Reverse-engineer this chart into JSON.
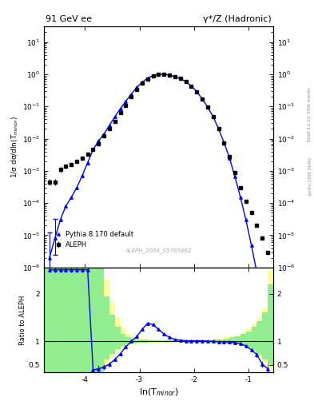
{
  "title_left": "91 GeV ee",
  "title_right": "γ*/Z (Hadronic)",
  "ylabel_main": "1/σ dσ/dln(T$_{minor}$)",
  "ylabel_ratio": "Ratio to ALEPH",
  "xlabel": "ln(T$_{minor}$)",
  "watermark": "ALEPH_2004_S5765862",
  "right_label": "Rivet 3.1.10, 500k events",
  "right_label2": "[arXiv:1306.3436]",
  "xlim": [
    -4.75,
    -0.55
  ],
  "ylim_main": [
    1e-06,
    30
  ],
  "ylim_ratio": [
    0.35,
    2.55
  ],
  "ratio_yticks": [
    0.5,
    1.0,
    2.0
  ],
  "aleph_x": [
    -4.65,
    -4.55,
    -4.45,
    -4.35,
    -4.25,
    -4.15,
    -4.05,
    -3.95,
    -3.85,
    -3.75,
    -3.65,
    -3.55,
    -3.45,
    -3.35,
    -3.25,
    -3.15,
    -3.05,
    -2.95,
    -2.85,
    -2.75,
    -2.65,
    -2.55,
    -2.45,
    -2.35,
    -2.25,
    -2.15,
    -2.05,
    -1.95,
    -1.85,
    -1.75,
    -1.65,
    -1.55,
    -1.45,
    -1.35,
    -1.25,
    -1.15,
    -1.05,
    -0.95,
    -0.85,
    -0.75,
    -0.65
  ],
  "aleph_y": [
    0.00045,
    0.00045,
    0.0011,
    0.0014,
    0.0016,
    0.002,
    0.0025,
    0.0032,
    0.0045,
    0.007,
    0.012,
    0.02,
    0.035,
    0.065,
    0.11,
    0.2,
    0.33,
    0.52,
    0.72,
    0.88,
    0.98,
    1.0,
    0.95,
    0.85,
    0.73,
    0.58,
    0.43,
    0.29,
    0.17,
    0.095,
    0.048,
    0.02,
    0.0075,
    0.0028,
    0.0009,
    0.0003,
    0.00011,
    5e-05,
    2e-05,
    8e-06,
    3e-06
  ],
  "aleph_yerr": [
    0.0001,
    0.0001,
    0.0002,
    0.0002,
    0.0002,
    0.0002,
    0.0002,
    0.0002,
    0.0003,
    0.0004,
    0.0006,
    0.001,
    0.0015,
    0.0025,
    0.004,
    0.007,
    0.01,
    0.015,
    0.02,
    0.025,
    0.025,
    0.025,
    0.025,
    0.025,
    0.02,
    0.018,
    0.015,
    0.01,
    0.007,
    0.004,
    0.002,
    0.001,
    0.0004,
    0.00015,
    5e-05,
    2e-05,
    8e-06,
    3e-06,
    1.5e-06,
    6e-07,
    3e-07
  ],
  "mc_x": [
    -4.65,
    -4.55,
    -4.45,
    -4.35,
    -4.25,
    -4.15,
    -4.05,
    -3.95,
    -3.85,
    -3.75,
    -3.65,
    -3.55,
    -3.45,
    -3.35,
    -3.25,
    -3.15,
    -3.05,
    -2.95,
    -2.85,
    -2.75,
    -2.65,
    -2.55,
    -2.45,
    -2.35,
    -2.25,
    -2.15,
    -2.05,
    -1.95,
    -1.85,
    -1.75,
    -1.65,
    -1.55,
    -1.45,
    -1.35,
    -1.25,
    -1.15,
    -1.05,
    -0.95,
    -0.85,
    -0.75,
    -0.65
  ],
  "mc_y": [
    2e-06,
    8e-06,
    3e-05,
    8e-05,
    0.00015,
    0.0003,
    0.0007,
    0.0018,
    0.0045,
    0.0085,
    0.014,
    0.026,
    0.048,
    0.085,
    0.145,
    0.24,
    0.39,
    0.56,
    0.76,
    0.9,
    0.99,
    0.99,
    0.94,
    0.84,
    0.73,
    0.58,
    0.43,
    0.29,
    0.17,
    0.095,
    0.048,
    0.02,
    0.0075,
    0.0025,
    0.00065,
    0.00015,
    3e-05,
    5e-06,
    7e-07,
    8e-08,
    5e-09
  ],
  "mc_yerr_lo": [
    1e-06,
    5e-06,
    1.5e-05,
    4e-05,
    7e-05,
    0.0001,
    0.0002,
    0.0005,
    0.001,
    0.002,
    0.003,
    0.005,
    0.008,
    0.012,
    0.018,
    0.025,
    0.035,
    0.04,
    0.05,
    0.05,
    0.05,
    0.05,
    0.05,
    0.04,
    0.035,
    0.03,
    0.025,
    0.018,
    0.012,
    0.008,
    0.004,
    0.002,
    0.0008,
    0.0003,
    0.0001,
    3e-05,
    6e-06,
    1e-06,
    2e-07,
    2e-08,
    1e-09
  ],
  "mc_yerr_hi": [
    1e-06,
    5e-06,
    1.5e-05,
    4e-05,
    7e-05,
    0.0001,
    0.0002,
    0.0005,
    0.001,
    0.002,
    0.003,
    0.005,
    0.008,
    0.012,
    0.018,
    0.025,
    0.035,
    0.04,
    0.05,
    0.05,
    0.05,
    0.05,
    0.05,
    0.04,
    0.035,
    0.03,
    0.025,
    0.018,
    0.012,
    0.008,
    0.004,
    0.002,
    0.0008,
    0.0003,
    0.0001,
    3e-05,
    6e-06,
    1e-06,
    2e-07,
    2e-08,
    1e-09
  ],
  "ratio_x": [
    -4.65,
    -4.55,
    -4.45,
    -4.35,
    -4.25,
    -4.15,
    -4.05,
    -3.95,
    -3.85,
    -3.75,
    -3.65,
    -3.55,
    -3.45,
    -3.35,
    -3.25,
    -3.15,
    -3.05,
    -2.95,
    -2.85,
    -2.75,
    -2.65,
    -2.55,
    -2.45,
    -2.35,
    -2.25,
    -2.15,
    -2.05,
    -1.95,
    -1.85,
    -1.75,
    -1.65,
    -1.55,
    -1.45,
    -1.35,
    -1.25,
    -1.15,
    -1.05,
    -0.95,
    -0.85,
    -0.75,
    -0.65
  ],
  "ratio_y": [
    2.5,
    2.5,
    2.5,
    2.5,
    2.5,
    2.5,
    2.5,
    2.5,
    0.4,
    0.42,
    0.46,
    0.52,
    0.62,
    0.74,
    0.88,
    1.0,
    1.1,
    1.25,
    1.38,
    1.35,
    1.25,
    1.15,
    1.08,
    1.04,
    1.02,
    1.01,
    1.01,
    1.01,
    1.01,
    1.0,
    1.0,
    0.99,
    0.99,
    0.98,
    0.97,
    0.95,
    0.9,
    0.82,
    0.72,
    0.52,
    0.42
  ],
  "ratio_yerr": [
    0.05,
    0.05,
    0.05,
    0.05,
    0.05,
    0.05,
    0.05,
    0.05,
    0.1,
    0.08,
    0.06,
    0.05,
    0.04,
    0.03,
    0.03,
    0.02,
    0.02,
    0.02,
    0.03,
    0.03,
    0.02,
    0.02,
    0.02,
    0.01,
    0.01,
    0.01,
    0.01,
    0.01,
    0.01,
    0.01,
    0.01,
    0.01,
    0.01,
    0.01,
    0.01,
    0.01,
    0.02,
    0.03,
    0.05,
    0.07,
    0.1
  ],
  "band_x_edges": [
    -4.75,
    -4.55,
    -4.45,
    -4.35,
    -4.25,
    -4.15,
    -4.05,
    -3.95,
    -3.85,
    -3.75,
    -3.65,
    -3.55,
    -3.45,
    -3.35,
    -3.25,
    -3.15,
    -3.05,
    -2.95,
    -2.85,
    -2.75,
    -2.65,
    -2.55,
    -2.45,
    -2.35,
    -2.25,
    -2.15,
    -2.05,
    -1.95,
    -1.85,
    -1.75,
    -1.65,
    -1.55,
    -1.45,
    -1.35,
    -1.25,
    -1.15,
    -1.05,
    -0.95,
    -0.85,
    -0.75,
    -0.65,
    -0.55
  ],
  "yellow_lo": [
    0.35,
    0.35,
    0.35,
    0.35,
    0.35,
    0.35,
    0.35,
    0.35,
    0.35,
    0.35,
    0.5,
    0.65,
    0.78,
    0.87,
    0.92,
    0.94,
    0.95,
    0.96,
    0.97,
    0.97,
    0.97,
    0.97,
    0.97,
    0.97,
    0.97,
    0.97,
    0.97,
    0.97,
    0.97,
    0.96,
    0.96,
    0.95,
    0.94,
    0.93,
    0.91,
    0.88,
    0.83,
    0.76,
    0.67,
    0.56,
    0.42
  ],
  "yellow_hi": [
    2.55,
    2.55,
    2.55,
    2.55,
    2.55,
    2.55,
    2.55,
    2.55,
    2.55,
    2.55,
    2.3,
    1.85,
    1.5,
    1.28,
    1.16,
    1.1,
    1.07,
    1.05,
    1.04,
    1.04,
    1.04,
    1.03,
    1.03,
    1.03,
    1.03,
    1.03,
    1.03,
    1.03,
    1.03,
    1.04,
    1.05,
    1.06,
    1.08,
    1.1,
    1.14,
    1.19,
    1.26,
    1.37,
    1.5,
    1.7,
    2.5
  ],
  "green_lo": [
    0.35,
    0.35,
    0.35,
    0.35,
    0.35,
    0.35,
    0.35,
    0.35,
    0.35,
    0.35,
    0.62,
    0.73,
    0.83,
    0.9,
    0.94,
    0.96,
    0.97,
    0.97,
    0.98,
    0.98,
    0.98,
    0.98,
    0.98,
    0.98,
    0.98,
    0.98,
    0.98,
    0.98,
    0.98,
    0.97,
    0.97,
    0.96,
    0.96,
    0.95,
    0.93,
    0.91,
    0.87,
    0.8,
    0.72,
    0.62,
    0.5
  ],
  "green_hi": [
    2.55,
    2.55,
    2.55,
    2.55,
    2.55,
    2.55,
    2.55,
    2.55,
    2.55,
    2.55,
    1.95,
    1.55,
    1.3,
    1.16,
    1.09,
    1.06,
    1.04,
    1.03,
    1.02,
    1.02,
    1.02,
    1.02,
    1.02,
    1.02,
    1.02,
    1.02,
    1.02,
    1.02,
    1.02,
    1.02,
    1.03,
    1.04,
    1.06,
    1.08,
    1.11,
    1.15,
    1.2,
    1.3,
    1.42,
    1.6,
    2.2
  ]
}
